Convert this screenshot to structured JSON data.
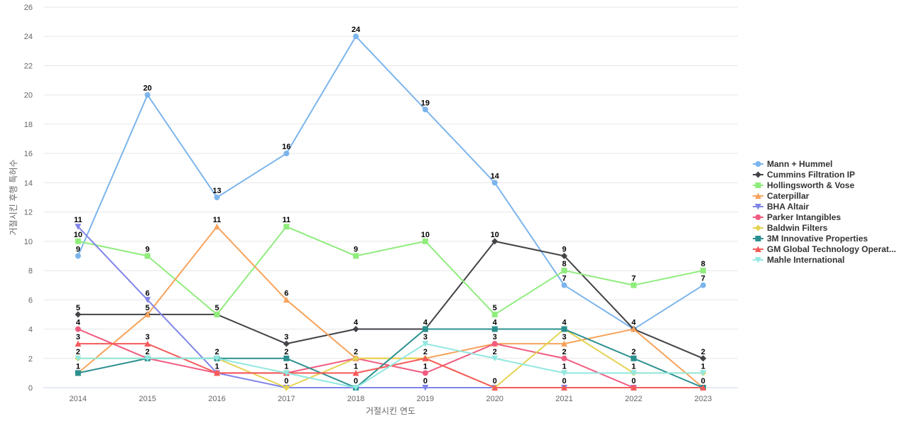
{
  "chart_data": {
    "type": "line",
    "title": "",
    "xlabel": "거절시킨 연도",
    "ylabel": "거절시킨 후행 특허수",
    "categories": [
      "2014",
      "2015",
      "2016",
      "2017",
      "2018",
      "2019",
      "2020",
      "2021",
      "2022",
      "2023"
    ],
    "ylim": [
      0,
      26
    ],
    "yticks": [
      0,
      2,
      4,
      6,
      8,
      10,
      12,
      14,
      16,
      18,
      20,
      22,
      24,
      26
    ],
    "legend_position": "right",
    "series": [
      {
        "name": "Mann + Hummel",
        "color": "#7cb5ec",
        "marker": "circle",
        "values": [
          9,
          20,
          13,
          16,
          24,
          19,
          14,
          7,
          4,
          7
        ]
      },
      {
        "name": "Cummins Filtration IP",
        "color": "#434348",
        "marker": "diamond",
        "values": [
          5,
          5,
          5,
          3,
          4,
          4,
          10,
          9,
          4,
          2
        ]
      },
      {
        "name": "Hollingsworth & Vose",
        "color": "#90ed7d",
        "marker": "square",
        "values": [
          10,
          9,
          5,
          11,
          9,
          10,
          5,
          8,
          7,
          8
        ]
      },
      {
        "name": "Caterpillar",
        "color": "#f7a35c",
        "marker": "triangle",
        "values": [
          1,
          5,
          11,
          6,
          2,
          2,
          3,
          3,
          4,
          0
        ]
      },
      {
        "name": "BHA Altair",
        "color": "#8085e9",
        "marker": "triangle-down",
        "values": [
          11,
          6,
          1,
          0,
          0,
          0,
          0,
          0,
          0,
          0
        ]
      },
      {
        "name": "Parker Intangibles",
        "color": "#f15c80",
        "marker": "circle",
        "values": [
          4,
          2,
          1,
          1,
          2,
          1,
          3,
          2,
          0,
          0
        ]
      },
      {
        "name": "Baldwin Filters",
        "color": "#e4d354",
        "marker": "diamond",
        "values": [
          2,
          2,
          2,
          0,
          2,
          2,
          0,
          4,
          1,
          1
        ]
      },
      {
        "name": "3M Innovative Properties",
        "color": "#2b908f",
        "marker": "square",
        "values": [
          1,
          2,
          2,
          2,
          0,
          4,
          4,
          4,
          2,
          0
        ]
      },
      {
        "name": "GM Global Technology Operat...",
        "color": "#f45b5b",
        "marker": "triangle",
        "values": [
          3,
          3,
          1,
          1,
          1,
          2,
          0,
          0,
          0,
          0
        ]
      },
      {
        "name": "Mahle International",
        "color": "#91e8e1",
        "marker": "triangle-down",
        "values": [
          2,
          2,
          2,
          1,
          0,
          3,
          2,
          1,
          1,
          1
        ]
      }
    ],
    "data_labels": [
      {
        "x": "2014",
        "text": "11"
      },
      {
        "x": "2014",
        "text": "10"
      },
      {
        "x": "2014",
        "text": "9"
      },
      {
        "x": "2014",
        "text": "5"
      },
      {
        "x": "2014",
        "text": "4"
      },
      {
        "x": "2014",
        "text": "3"
      },
      {
        "x": "2014",
        "text": "2"
      },
      {
        "x": "2014",
        "text": "1"
      },
      {
        "x": "2015",
        "text": "20"
      },
      {
        "x": "2015",
        "text": "9"
      },
      {
        "x": "2015",
        "text": "6"
      },
      {
        "x": "2015",
        "text": "5"
      },
      {
        "x": "2015",
        "text": "3"
      },
      {
        "x": "2015",
        "text": "2"
      },
      {
        "x": "2016",
        "text": "13"
      },
      {
        "x": "2016",
        "text": "11"
      },
      {
        "x": "2016",
        "text": "5"
      },
      {
        "x": "2016",
        "text": "2"
      },
      {
        "x": "2016",
        "text": "1"
      },
      {
        "x": "2017",
        "text": "16"
      },
      {
        "x": "2017",
        "text": "11"
      },
      {
        "x": "2017",
        "text": "6"
      },
      {
        "x": "2017",
        "text": "3"
      },
      {
        "x": "2017",
        "text": "2"
      },
      {
        "x": "2017",
        "text": "1"
      },
      {
        "x": "2017",
        "text": "0"
      },
      {
        "x": "2018",
        "text": "24"
      },
      {
        "x": "2018",
        "text": "9"
      },
      {
        "x": "2018",
        "text": "4"
      },
      {
        "x": "2018",
        "text": "2"
      },
      {
        "x": "2018",
        "text": "1"
      },
      {
        "x": "2018",
        "text": "0"
      },
      {
        "x": "2019",
        "text": "19"
      },
      {
        "x": "2019",
        "text": "10"
      },
      {
        "x": "2019",
        "text": "4"
      },
      {
        "x": "2019",
        "text": "3"
      },
      {
        "x": "2019",
        "text": "2"
      },
      {
        "x": "2019",
        "text": "1"
      },
      {
        "x": "2019",
        "text": "0"
      },
      {
        "x": "2020",
        "text": "14"
      },
      {
        "x": "2020",
        "text": "10"
      },
      {
        "x": "2020",
        "text": "5"
      },
      {
        "x": "2020",
        "text": "4"
      },
      {
        "x": "2020",
        "text": "3"
      },
      {
        "x": "2020",
        "text": "2"
      },
      {
        "x": "2020",
        "text": "0"
      },
      {
        "x": "2021",
        "text": "9"
      },
      {
        "x": "2021",
        "text": "8"
      },
      {
        "x": "2021",
        "text": "7"
      },
      {
        "x": "2021",
        "text": "4"
      },
      {
        "x": "2021",
        "text": "3"
      },
      {
        "x": "2021",
        "text": "2"
      },
      {
        "x": "2021",
        "text": "1"
      },
      {
        "x": "2021",
        "text": "0"
      },
      {
        "x": "2022",
        "text": "7"
      },
      {
        "x": "2022",
        "text": "4"
      },
      {
        "x": "2022",
        "text": "2"
      },
      {
        "x": "2022",
        "text": "1"
      },
      {
        "x": "2022",
        "text": "0"
      },
      {
        "x": "2023",
        "text": "8"
      },
      {
        "x": "2023",
        "text": "7"
      },
      {
        "x": "2023",
        "text": "2"
      },
      {
        "x": "2023",
        "text": "1"
      },
      {
        "x": "2023",
        "text": "0"
      }
    ]
  }
}
